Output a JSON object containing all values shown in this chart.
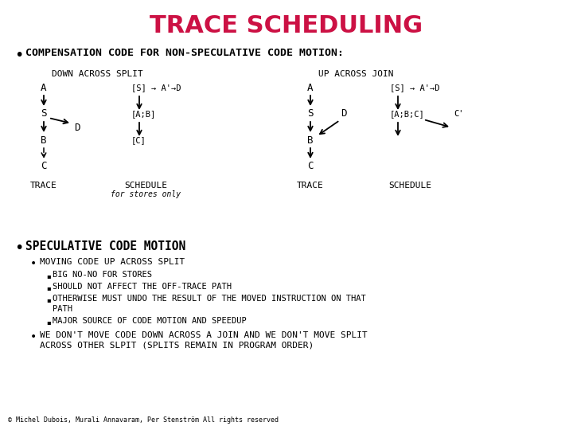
{
  "title": "TRACE SCHEDULING",
  "title_color": "#cc1144",
  "title_fontsize": 22,
  "bg_color": "#ffffff",
  "bullet1": "COMPENSATION CODE FOR NON-SPECULATIVE CODE MOTION:",
  "bullet2": "SPECULATIVE CODE MOTION",
  "sub_bullet1": "MOVING CODE UP ACROSS SPLIT",
  "sub_sub_bullets": [
    "BIG NO-NO FOR STORES",
    "SHOULD NOT AFFECT THE OFF-TRACE PATH",
    "OTHERWISE MUST UNDO THE RESULT OF THE MOVED INSTRUCTION ON THAT\n        PATH",
    "MAJOR SOURCE OF CODE MOTION AND SPEEDUP"
  ],
  "sub_bullet2": "WE DON'T MOVE CODE DOWN ACROSS A JOIN AND WE DON'T MOVE SPLIT\n      ACROSS OTHER SLPIT (SPLITS REMAIN IN PROGRAM ORDER)",
  "footer": "© Michel Dubois, Murali Annavaram, Per Stenström All rights reserved",
  "font_family": "monospace"
}
